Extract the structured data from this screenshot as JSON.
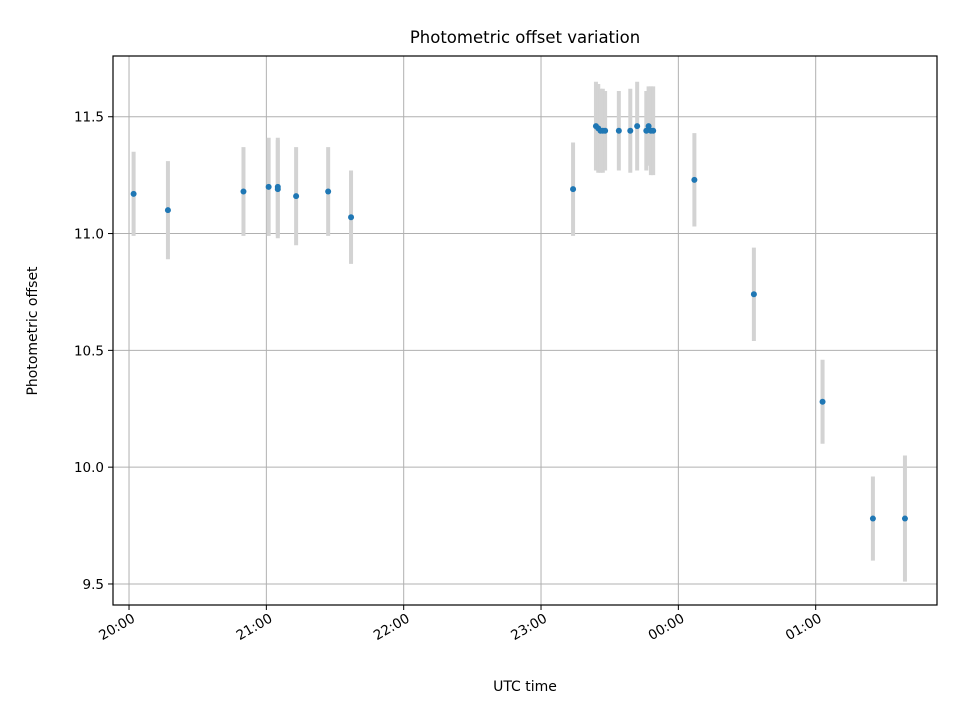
{
  "chart_data": {
    "type": "scatter",
    "title": "Photometric offset variation",
    "xlabel": "UTC time",
    "ylabel": "Photometric offset",
    "xlim": [
      "19:53",
      "01:53"
    ],
    "ylim": [
      9.41,
      11.76
    ],
    "x_ticks": [
      "20:00",
      "21:00",
      "22:00",
      "23:00",
      "00:00",
      "01:00"
    ],
    "y_ticks": [
      "9.5",
      "10.0",
      "10.5",
      "11.0",
      "11.5"
    ],
    "grid": true,
    "colors": {
      "points": "#1f77b4",
      "errorbars": "#d3d3d3",
      "grid": "#b0b0b0",
      "frame": "#000000"
    },
    "points": [
      {
        "x": "20:02",
        "y": 11.17,
        "err": 0.18
      },
      {
        "x": "20:17",
        "y": 11.1,
        "err": 0.21
      },
      {
        "x": "20:50",
        "y": 11.18,
        "err": 0.19
      },
      {
        "x": "21:01",
        "y": 11.2,
        "err": 0.21
      },
      {
        "x": "21:05",
        "y": 11.2,
        "err": 0.21
      },
      {
        "x": "21:05",
        "y": 11.19,
        "err": 0.21
      },
      {
        "x": "21:13",
        "y": 11.16,
        "err": 0.21
      },
      {
        "x": "21:27",
        "y": 11.18,
        "err": 0.19
      },
      {
        "x": "21:37",
        "y": 11.07,
        "err": 0.2
      },
      {
        "x": "23:14",
        "y": 11.19,
        "err": 0.2
      },
      {
        "x": "23:24",
        "y": 11.46,
        "err": 0.19
      },
      {
        "x": "23:25",
        "y": 11.45,
        "err": 0.19
      },
      {
        "x": "23:26",
        "y": 11.44,
        "err": 0.18
      },
      {
        "x": "23:27",
        "y": 11.44,
        "err": 0.18
      },
      {
        "x": "23:28",
        "y": 11.44,
        "err": 0.17
      },
      {
        "x": "23:34",
        "y": 11.44,
        "err": 0.17
      },
      {
        "x": "23:39",
        "y": 11.44,
        "err": 0.18
      },
      {
        "x": "23:42",
        "y": 11.46,
        "err": 0.19
      },
      {
        "x": "23:46",
        "y": 11.44,
        "err": 0.17
      },
      {
        "x": "23:47",
        "y": 11.46,
        "err": 0.17
      },
      {
        "x": "23:48",
        "y": 11.44,
        "err": 0.19
      },
      {
        "x": "23:49",
        "y": 11.44,
        "err": 0.19
      },
      {
        "x": "00:07",
        "y": 11.23,
        "err": 0.2
      },
      {
        "x": "00:33",
        "y": 10.74,
        "err": 0.2
      },
      {
        "x": "01:03",
        "y": 10.28,
        "err": 0.18
      },
      {
        "x": "01:25",
        "y": 9.78,
        "err": 0.18
      },
      {
        "x": "01:39",
        "y": 9.78,
        "err": 0.27
      }
    ]
  }
}
